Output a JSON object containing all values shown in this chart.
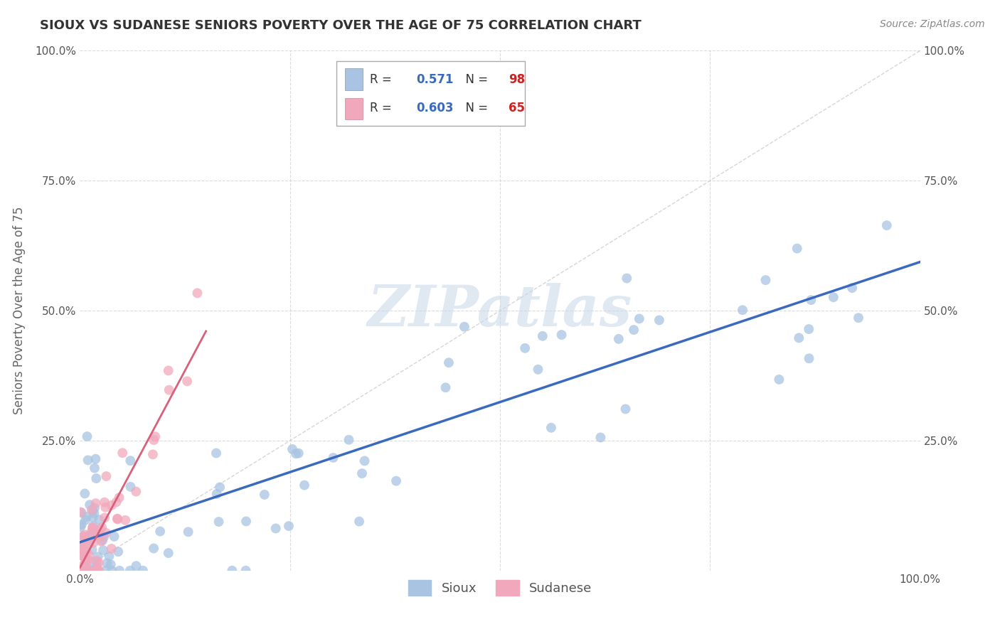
{
  "title": "SIOUX VS SUDANESE SENIORS POVERTY OVER THE AGE OF 75 CORRELATION CHART",
  "source": "Source: ZipAtlas.com",
  "ylabel": "Seniors Poverty Over the Age of 75",
  "sioux_R": 0.571,
  "sioux_N": 98,
  "sudanese_R": 0.603,
  "sudanese_N": 65,
  "sioux_color": "#a8c4e2",
  "sudanese_color": "#f2a8bc",
  "sioux_line_color": "#3a6abf",
  "sudanese_line_color": "#d9607a",
  "legend_r_color": "#3a6abf",
  "legend_n_color": "#cc2222",
  "title_color": "#333333",
  "watermark_color": "#ccd9ea",
  "background_color": "#ffffff",
  "grid_color": "#cccccc",
  "tick_color": "#555555"
}
